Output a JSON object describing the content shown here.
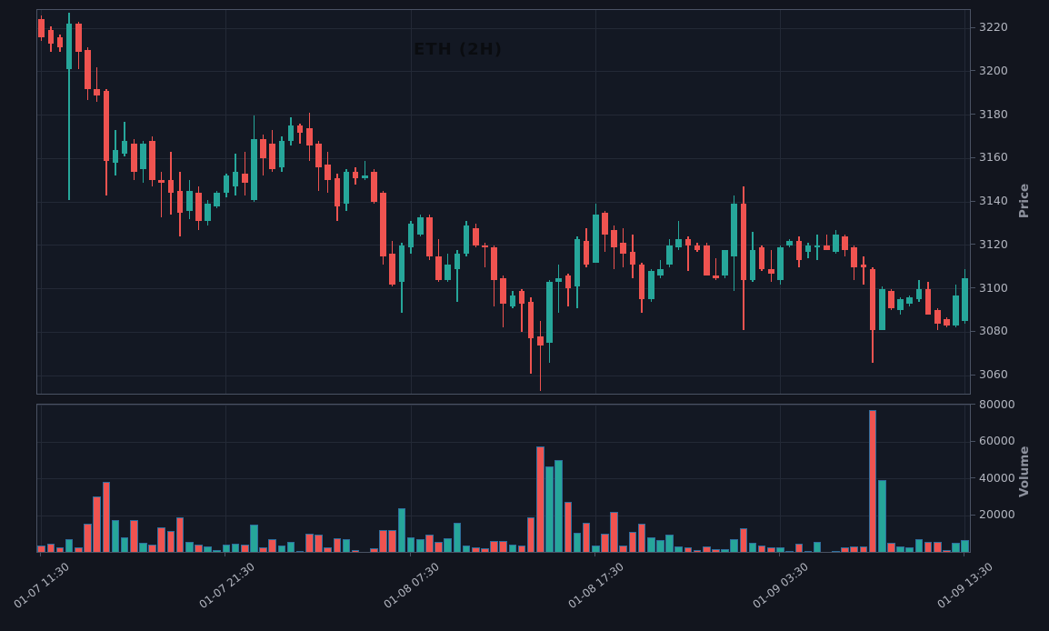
{
  "chart_data": {
    "type": "candlestick",
    "title": "ETH (2H)",
    "legend_position": "none",
    "grid": true,
    "price_axis": {
      "label": "Price",
      "side": "right",
      "ticks": [
        3220,
        3200,
        3180,
        3160,
        3140,
        3120,
        3100,
        3080,
        3060
      ]
    },
    "volume_axis": {
      "label": "Volume",
      "side": "right",
      "ticks": [
        80000,
        60000,
        40000,
        20000
      ]
    },
    "x_axis": {
      "tick_indices": [
        0,
        20,
        40,
        60,
        80,
        100
      ],
      "tick_labels": [
        "01-07 11:30",
        "01-07 21:30",
        "01-08 07:30",
        "01-08 17:30",
        "01-09 03:30",
        "01-09 13:30"
      ]
    },
    "colors": {
      "up": "#26a69a",
      "down": "#ef5350",
      "volume_edge": "#2e6f9e",
      "figure_background": "#12151e",
      "plot_background": "#131823",
      "grid": "#232936",
      "spine": "#4a5263",
      "tick_label": "#b2b5bf",
      "axis_title": "#8d919d",
      "title_color": "#0a0c10"
    },
    "candles_format": [
      "open",
      "high",
      "low",
      "close",
      "volume"
    ],
    "candles": [
      [
        3224,
        3226,
        3214,
        3216,
        3600
      ],
      [
        3219,
        3221,
        3209,
        3213,
        4800
      ],
      [
        3216,
        3217,
        3209,
        3211,
        2500
      ],
      [
        3201,
        3227,
        3141,
        3222,
        7000
      ],
      [
        3222,
        3223,
        3201,
        3209,
        2700
      ],
      [
        3210,
        3211,
        3187,
        3192,
        15600
      ],
      [
        3192,
        3202,
        3186,
        3189,
        30200
      ],
      [
        3191,
        3192,
        3143,
        3159,
        38500
      ],
      [
        3158,
        3173,
        3152,
        3164,
        17300
      ],
      [
        3162,
        3177,
        3161,
        3168,
        8300
      ],
      [
        3167,
        3169,
        3150,
        3154,
        17300
      ],
      [
        3155,
        3168,
        3149,
        3167,
        5300
      ],
      [
        3168,
        3170,
        3147,
        3150,
        4200
      ],
      [
        3150,
        3154,
        3133,
        3149,
        13600
      ],
      [
        3150,
        3163,
        3134,
        3144,
        11600
      ],
      [
        3145,
        3154,
        3124,
        3135,
        18900
      ],
      [
        3136,
        3150,
        3132,
        3145,
        5600
      ],
      [
        3144,
        3147,
        3127,
        3131,
        4300
      ],
      [
        3131,
        3141,
        3129,
        3139,
        3300
      ],
      [
        3138,
        3145,
        3137,
        3144,
        1200
      ],
      [
        3144,
        3153,
        3142,
        3152,
        4000
      ],
      [
        3147,
        3162,
        3143,
        3154,
        4500
      ],
      [
        3153,
        3163,
        3143,
        3149,
        4200
      ],
      [
        3141,
        3180,
        3140,
        3169,
        15300
      ],
      [
        3169,
        3171,
        3152,
        3160,
        2800
      ],
      [
        3167,
        3173,
        3154,
        3155,
        7000
      ],
      [
        3156,
        3170,
        3154,
        3168,
        3700
      ],
      [
        3168,
        3179,
        3166,
        3175,
        5600
      ],
      [
        3175,
        3176,
        3167,
        3172,
        700
      ],
      [
        3174,
        3181,
        3159,
        3166,
        10300
      ],
      [
        3167,
        3168,
        3145,
        3156,
        9500
      ],
      [
        3157,
        3163,
        3144,
        3150,
        2800
      ],
      [
        3151,
        3153,
        3131,
        3138,
        7800
      ],
      [
        3139,
        3155,
        3136,
        3154,
        7300
      ],
      [
        3154,
        3156,
        3148,
        3151,
        1200
      ],
      [
        3151,
        3159,
        3150,
        3152,
        400
      ],
      [
        3154,
        3155,
        3139,
        3140,
        2300
      ],
      [
        3144,
        3145,
        3111,
        3115,
        12000
      ],
      [
        3116,
        3122,
        3101,
        3102,
        12300
      ],
      [
        3103,
        3121,
        3089,
        3120,
        23900
      ],
      [
        3119,
        3131,
        3116,
        3130,
        8300
      ],
      [
        3125,
        3134,
        3124,
        3133,
        7000
      ],
      [
        3133,
        3134,
        3113,
        3115,
        9500
      ],
      [
        3115,
        3123,
        3103,
        3104,
        5600
      ],
      [
        3104,
        3116,
        3103,
        3111,
        7500
      ],
      [
        3109,
        3118,
        3094,
        3116,
        16100
      ],
      [
        3116,
        3131,
        3115,
        3129,
        3700
      ],
      [
        3128,
        3130,
        3119,
        3120,
        2800
      ],
      [
        3120,
        3121,
        3110,
        3119,
        2300
      ],
      [
        3119,
        3120,
        3092,
        3104,
        6100
      ],
      [
        3105,
        3106,
        3082,
        3093,
        6000
      ],
      [
        3092,
        3099,
        3091,
        3097,
        4200
      ],
      [
        3099,
        3100,
        3080,
        3093,
        3700
      ],
      [
        3094,
        3096,
        3061,
        3077,
        19100
      ],
      [
        3078,
        3085,
        3053,
        3074,
        57600
      ],
      [
        3075,
        3104,
        3066,
        3103,
        46800
      ],
      [
        3103,
        3111,
        3089,
        3105,
        50100
      ],
      [
        3106,
        3107,
        3092,
        3100,
        27200
      ],
      [
        3101,
        3124,
        3091,
        3123,
        10800
      ],
      [
        3122,
        3128,
        3110,
        3111,
        16100
      ],
      [
        3112,
        3139,
        3112,
        3134,
        3700
      ],
      [
        3135,
        3136,
        3117,
        3125,
        10000
      ],
      [
        3127,
        3129,
        3109,
        3119,
        22200
      ],
      [
        3121,
        3128,
        3110,
        3116,
        3700
      ],
      [
        3117,
        3125,
        3105,
        3111,
        11100
      ],
      [
        3111,
        3112,
        3089,
        3095,
        15600
      ],
      [
        3095,
        3109,
        3094,
        3108,
        8300
      ],
      [
        3106,
        3113,
        3105,
        3109,
        6600
      ],
      [
        3111,
        3123,
        3110,
        3120,
        9500
      ],
      [
        3119,
        3131,
        3118,
        3123,
        3300
      ],
      [
        3123,
        3124,
        3108,
        3120,
        2800
      ],
      [
        3120,
        3121,
        3117,
        3118,
        1200
      ],
      [
        3120,
        3121,
        3106,
        3106,
        3200
      ],
      [
        3106,
        3114,
        3104,
        3105,
        1500
      ],
      [
        3106,
        3118,
        3105,
        3118,
        1800
      ],
      [
        3115,
        3143,
        3099,
        3139,
        7300
      ],
      [
        3139,
        3147,
        3081,
        3104,
        13300
      ],
      [
        3104,
        3126,
        3103,
        3118,
        5300
      ],
      [
        3119,
        3120,
        3108,
        3109,
        3700
      ],
      [
        3109,
        3118,
        3103,
        3107,
        2500
      ],
      [
        3104,
        3120,
        3102,
        3119,
        2500
      ],
      [
        3120,
        3123,
        3119,
        3122,
        800
      ],
      [
        3122,
        3124,
        3110,
        3113,
        4800
      ],
      [
        3117,
        3121,
        3114,
        3120,
        800
      ],
      [
        3119,
        3125,
        3113,
        3120,
        5800
      ],
      [
        3120,
        3125,
        3118,
        3118,
        400
      ],
      [
        3117,
        3127,
        3116,
        3125,
        500
      ],
      [
        3124,
        3125,
        3115,
        3118,
        2800
      ],
      [
        3119,
        3120,
        3104,
        3110,
        3000
      ],
      [
        3111,
        3115,
        3102,
        3110,
        3000
      ],
      [
        3109,
        3110,
        3066,
        3081,
        77500
      ],
      [
        3081,
        3101,
        3081,
        3100,
        39300
      ],
      [
        3099,
        3100,
        3090,
        3091,
        5000
      ],
      [
        3090,
        3096,
        3088,
        3095,
        3300
      ],
      [
        3093,
        3097,
        3092,
        3096,
        2700
      ],
      [
        3095,
        3104,
        3094,
        3100,
        7000
      ],
      [
        3100,
        3103,
        3088,
        3088,
        5800
      ],
      [
        3090,
        3091,
        3081,
        3084,
        5800
      ],
      [
        3086,
        3087,
        3082,
        3083,
        1200
      ],
      [
        3083,
        3102,
        3082,
        3097,
        5300
      ],
      [
        3085,
        3109,
        3084,
        3105,
        6500
      ]
    ]
  }
}
